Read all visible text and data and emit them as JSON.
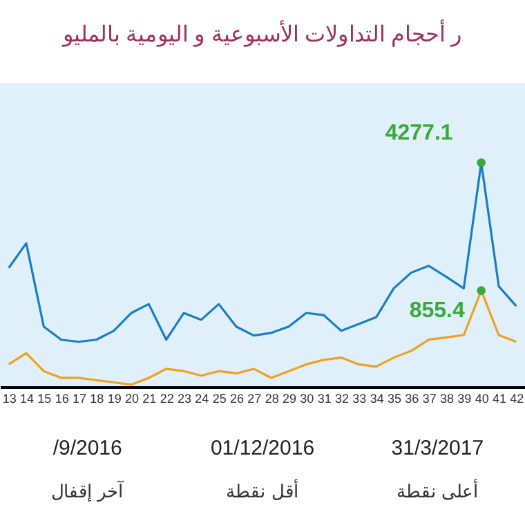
{
  "chart_data": {
    "type": "line",
    "tick_labels": "x",
    "title": "ر أحجام التداولات الأسبوعية و اليومية بالمليو",
    "categories": [
      "13",
      "14",
      "15",
      "16",
      "17",
      "18",
      "19",
      "20",
      "21",
      "22",
      "23",
      "24",
      "25",
      "26",
      "27",
      "28",
      "29",
      "30",
      "31",
      "32",
      "33",
      "34",
      "35",
      "36",
      "37",
      "38",
      "39",
      "40",
      "41",
      "42"
    ],
    "ylim": [
      0,
      5800
    ],
    "y2lim": [
      0,
      2700
    ],
    "series": [
      {
        "color": "#1a7dc4",
        "values": [
          2270,
          2740,
          1150,
          900,
          860,
          900,
          1070,
          1410,
          1580,
          900,
          1410,
          1280,
          1580,
          1150,
          980,
          1030,
          1150,
          1410,
          1370,
          1070,
          1200,
          1330,
          1880,
          2180,
          2310,
          2100,
          1880,
          4277.1,
          1920,
          1540
        ],
        "value_labels": [
          null,
          null,
          null,
          null,
          null,
          null,
          null,
          null,
          null,
          null,
          null,
          null,
          null,
          null,
          null,
          null,
          null,
          null,
          null,
          null,
          null,
          null,
          null,
          null,
          null,
          null,
          null,
          "4277.1",
          null,
          null
        ]
      },
      {
        "color": "#f0a020",
        "axis": "y2",
        "values": [
          200,
          300,
          140,
          80,
          80,
          60,
          40,
          20,
          80,
          160,
          140,
          100,
          140,
          120,
          160,
          80,
          140,
          200,
          240,
          260,
          200,
          180,
          260,
          320,
          420,
          440,
          460,
          855.4,
          460,
          400
        ],
        "value_labels": [
          null,
          null,
          null,
          null,
          null,
          null,
          null,
          null,
          null,
          null,
          null,
          null,
          null,
          null,
          null,
          null,
          null,
          null,
          null,
          null,
          null,
          null,
          null,
          null,
          null,
          null,
          null,
          "855.4",
          null,
          null
        ]
      }
    ],
    "annotations": [
      "/9/2016",
      "01/12/2016",
      "31/3/2017",
      "آخر إقفال",
      "أقل نقطة",
      "أعلى نقطة"
    ]
  }
}
